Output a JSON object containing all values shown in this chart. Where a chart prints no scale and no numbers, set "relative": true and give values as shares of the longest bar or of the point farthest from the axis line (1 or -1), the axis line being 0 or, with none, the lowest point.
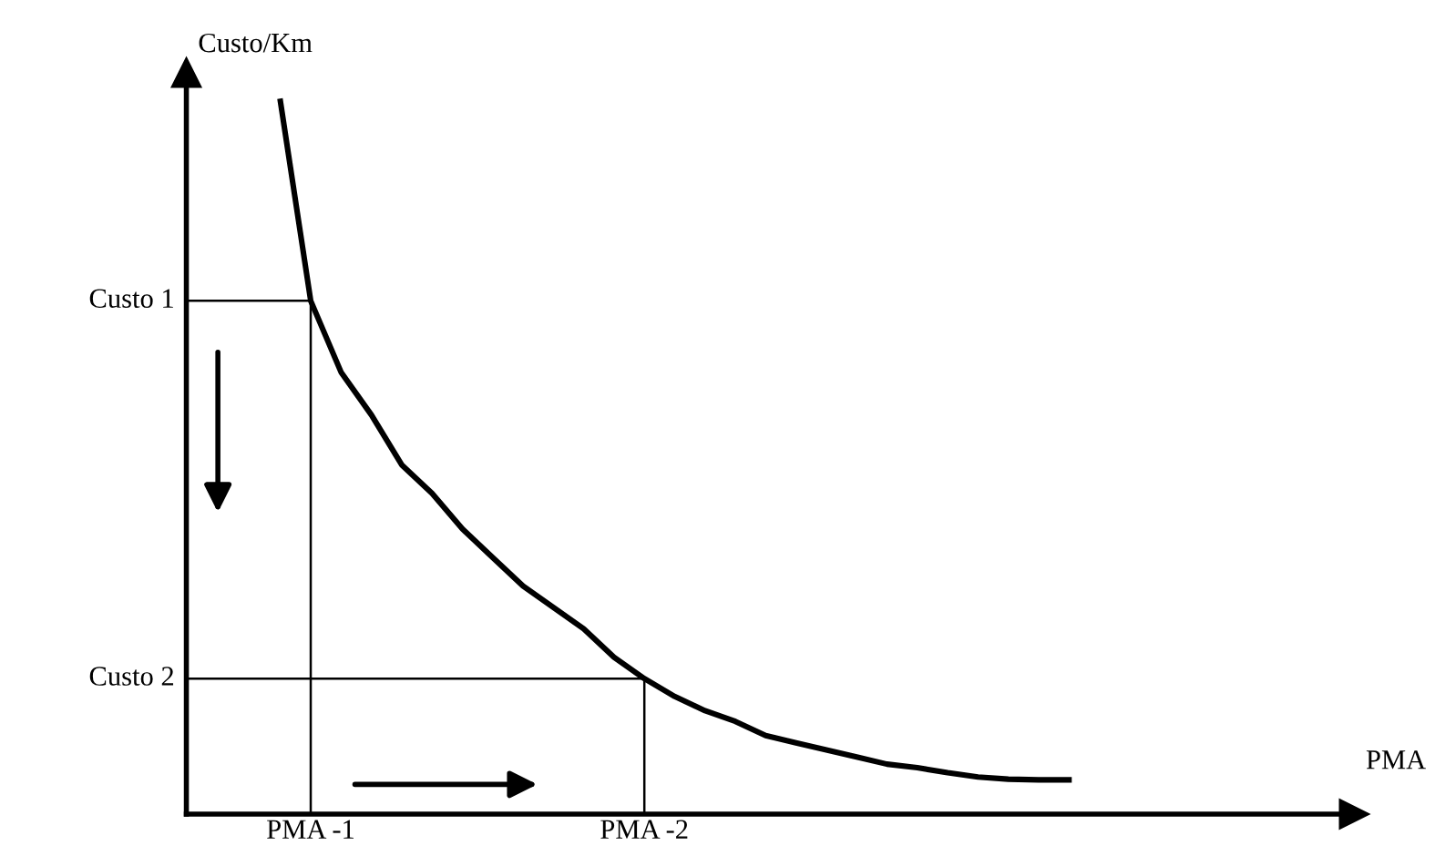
{
  "chart_data": {
    "type": "line",
    "relative": true,
    "annotations": [
      "PMA"
    ],
    "ylabel": "Custo/Km",
    "color": "#000000",
    "categories": [
      null,
      "PMA -1",
      null,
      null,
      null,
      null,
      null,
      null,
      null,
      null,
      null,
      null,
      "PMA -2",
      null,
      null,
      null,
      null,
      null,
      null,
      null,
      null,
      null,
      null,
      null,
      null,
      null,
      null
    ],
    "values": [
      1.0,
      0.72,
      0.62,
      0.56,
      0.49,
      0.45,
      0.4,
      0.36,
      0.32,
      0.29,
      0.26,
      0.22,
      0.19,
      0.165,
      0.145,
      0.13,
      0.11,
      0.1,
      0.09,
      0.08,
      0.07,
      0.065,
      0.058,
      0.052,
      0.049,
      0.048,
      0.048
    ],
    "ref_lines": [
      {
        "axis": "y",
        "value": 0.72,
        "label": "Custo 1"
      },
      {
        "axis": "y",
        "value": 0.19,
        "label": "Custo 2"
      },
      {
        "axis": "x",
        "value": "PMA -1"
      },
      {
        "axis": "x",
        "value": "PMA -2"
      }
    ],
    "grid": false,
    "legend": false,
    "marker": "none",
    "line_style": "solid"
  }
}
